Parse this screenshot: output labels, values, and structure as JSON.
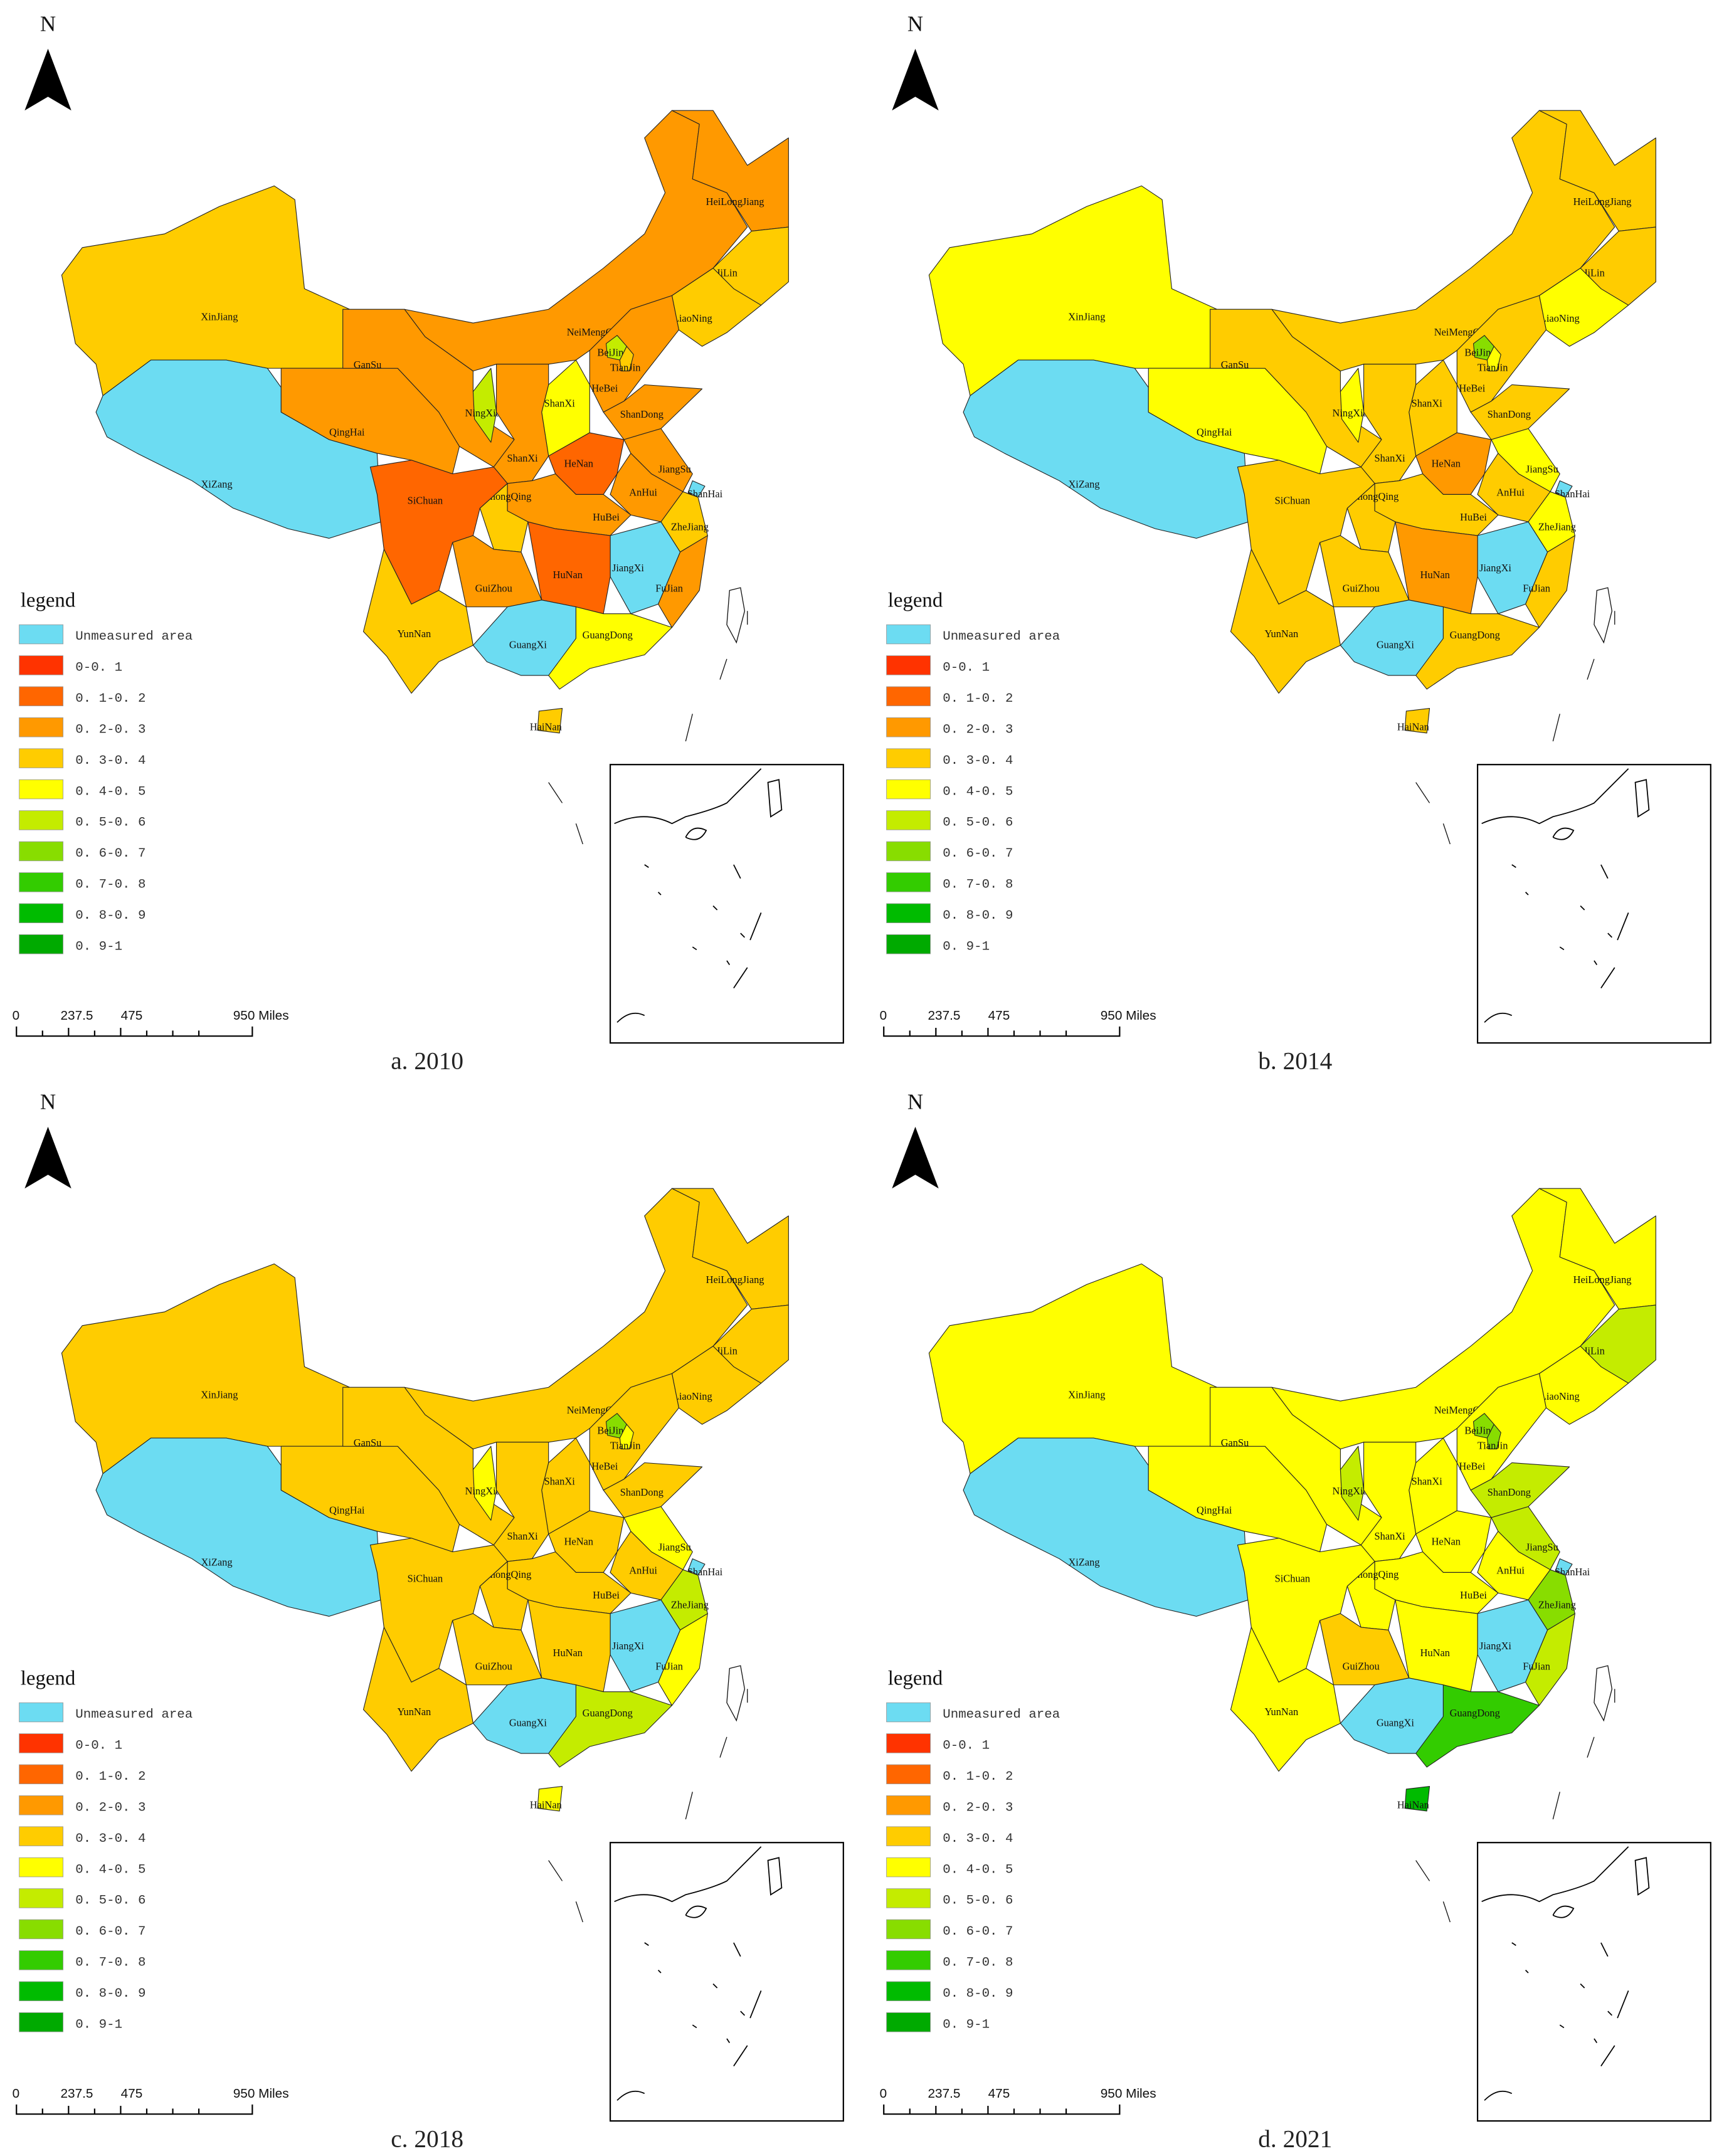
{
  "north_label": "N",
  "legend": {
    "title": "legend",
    "classes": [
      {
        "label": "Unmeasured area",
        "color": "#6cdcf2"
      },
      {
        "label": "0-0. 1",
        "color": "#ff3300"
      },
      {
        "label": "0. 1-0. 2",
        "color": "#ff6600"
      },
      {
        "label": "0. 2-0. 3",
        "color": "#ff9900"
      },
      {
        "label": "0. 3-0. 4",
        "color": "#ffcc00"
      },
      {
        "label": "0. 4-0. 5",
        "color": "#ffff00"
      },
      {
        "label": "0. 5-0. 6",
        "color": "#c4ec00"
      },
      {
        "label": "0. 6-0. 7",
        "color": "#88dd00"
      },
      {
        "label": "0. 7-0. 8",
        "color": "#33cc00"
      },
      {
        "label": "0. 8-0. 9",
        "color": "#00bb00"
      },
      {
        "label": "0. 9-1",
        "color": "#00aa00"
      }
    ]
  },
  "scale_bar": {
    "labels": [
      "0",
      "237.5",
      "475",
      "950 Miles"
    ]
  },
  "province_names": {
    "XinJiang": "XinJiang",
    "XiZang": "XiZang",
    "QingHai": "QingHai",
    "GanSu": "GanSu",
    "NeiMengGu": "NeiMengGu",
    "HeiLongJiang": "HeiLongJiang",
    "JiLin": "JiLin",
    "LiaoNing": "LiaoNing",
    "BeiJing": "BeiJing",
    "TianJin": "TianJin",
    "HeBei": "HeBei",
    "ShanXi": "ShanXi",
    "NingXia": "NingXia",
    "ShaanXi": "ShanXi",
    "ShanDong": "ShanDong",
    "HeNan": "HeNan",
    "JiangSu": "JiangSu",
    "AnHui": "AnHui",
    "ShangHai": "ShanHai",
    "HuBei": "HuBei",
    "SiChuan": "SiChuan",
    "ChongQing": "ChongQing",
    "ZheJiang": "ZheJiang",
    "HuNan": "HuNan",
    "JiangXi": "JiangXi",
    "FuJian": "FuJian",
    "GuiZhou": "GuiZhou",
    "YunNan": "YunNan",
    "GuangXi": "GuangXi",
    "GuangDong": "GuangDong",
    "HaiNan": "HaiNan"
  },
  "panels": [
    {
      "caption": "a. 2010",
      "classes": {
        "XinJiang": 4,
        "XiZang": 0,
        "QingHai": 3,
        "GanSu": 3,
        "NeiMengGu": 3,
        "HeiLongJiang": 3,
        "JiLin": 4,
        "LiaoNing": 4,
        "BeiJing": 6,
        "TianJin": 4,
        "HeBei": 3,
        "ShanXi": 5,
        "NingXia": 6,
        "ShaanXi": 3,
        "ShanDong": 3,
        "HeNan": 2,
        "JiangSu": 3,
        "AnHui": 3,
        "ShangHai": 0,
        "HuBei": 3,
        "SiChuan": 2,
        "ChongQing": 4,
        "ZheJiang": 4,
        "HuNan": 2,
        "JiangXi": 0,
        "FuJian": 3,
        "GuiZhou": 3,
        "YunNan": 4,
        "GuangXi": 0,
        "GuangDong": 5,
        "HaiNan": 4
      }
    },
    {
      "caption": "b. 2014",
      "classes": {
        "XinJiang": 5,
        "XiZang": 0,
        "QingHai": 5,
        "GanSu": 4,
        "NeiMengGu": 4,
        "HeiLongJiang": 4,
        "JiLin": 4,
        "LiaoNing": 5,
        "BeiJing": 7,
        "TianJin": 5,
        "HeBei": 4,
        "ShanXi": 4,
        "NingXia": 5,
        "ShaanXi": 4,
        "ShanDong": 4,
        "HeNan": 3,
        "JiangSu": 5,
        "AnHui": 4,
        "ShangHai": 0,
        "HuBei": 4,
        "SiChuan": 4,
        "ChongQing": 4,
        "ZheJiang": 5,
        "HuNan": 3,
        "JiangXi": 0,
        "FuJian": 4,
        "GuiZhou": 4,
        "YunNan": 4,
        "GuangXi": 0,
        "GuangDong": 4,
        "HaiNan": 4
      }
    },
    {
      "caption": "c. 2018",
      "classes": {
        "XinJiang": 4,
        "XiZang": 0,
        "QingHai": 4,
        "GanSu": 4,
        "NeiMengGu": 4,
        "HeiLongJiang": 4,
        "JiLin": 4,
        "LiaoNing": 4,
        "BeiJing": 7,
        "TianJin": 5,
        "HeBei": 4,
        "ShanXi": 4,
        "NingXia": 5,
        "ShaanXi": 4,
        "ShanDong": 4,
        "HeNan": 4,
        "JiangSu": 5,
        "AnHui": 4,
        "ShangHai": 0,
        "HuBei": 4,
        "SiChuan": 4,
        "ChongQing": 4,
        "ZheJiang": 6,
        "HuNan": 4,
        "JiangXi": 0,
        "FuJian": 5,
        "GuiZhou": 4,
        "YunNan": 4,
        "GuangXi": 0,
        "GuangDong": 6,
        "HaiNan": 5
      }
    },
    {
      "caption": "d. 2021",
      "classes": {
        "XinJiang": 5,
        "XiZang": 0,
        "QingHai": 5,
        "GanSu": 5,
        "NeiMengGu": 5,
        "HeiLongJiang": 5,
        "JiLin": 6,
        "LiaoNing": 5,
        "BeiJing": 7,
        "TianJin": 7,
        "HeBei": 5,
        "ShanXi": 5,
        "NingXia": 6,
        "ShaanXi": 5,
        "ShanDong": 6,
        "HeNan": 5,
        "JiangSu": 6,
        "AnHui": 5,
        "ShangHai": 0,
        "HuBei": 5,
        "SiChuan": 5,
        "ChongQing": 5,
        "ZheJiang": 7,
        "HuNan": 5,
        "JiangXi": 0,
        "FuJian": 6,
        "GuiZhou": 4,
        "YunNan": 5,
        "GuangXi": 0,
        "GuangDong": 8,
        "HaiNan": 9
      }
    }
  ]
}
